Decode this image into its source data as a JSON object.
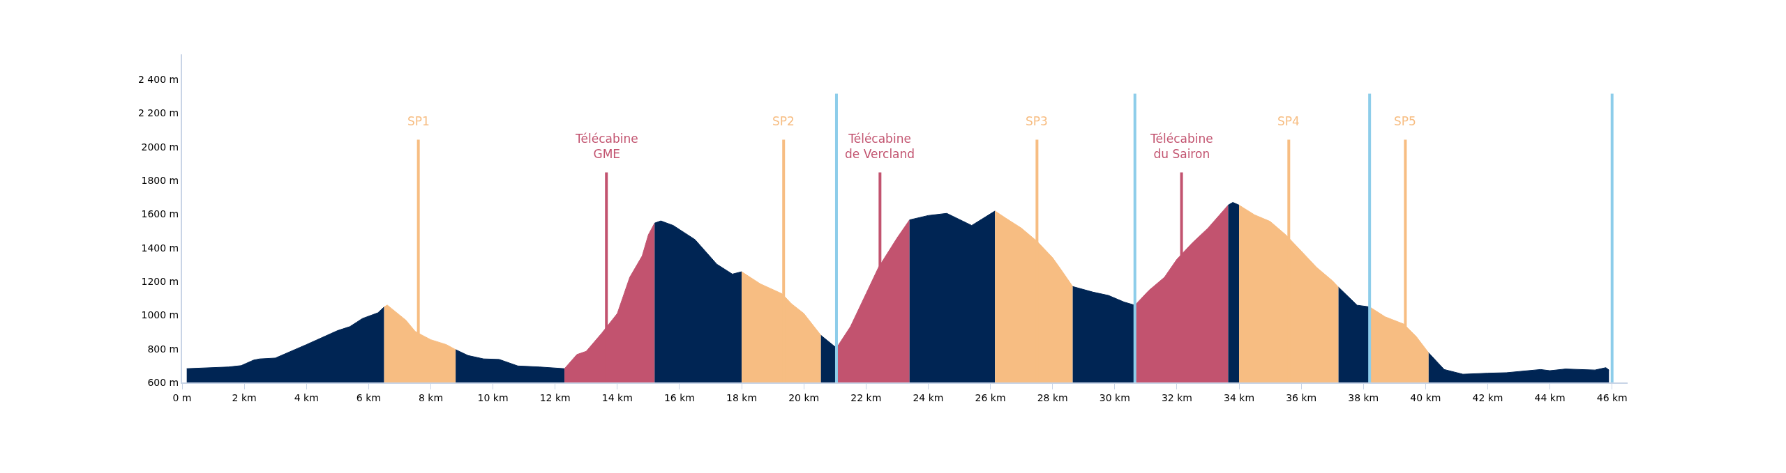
{
  "chart_data": {
    "type": "area",
    "xlim": [
      0,
      46.5
    ],
    "ylim": [
      600,
      2550
    ],
    "xticks": [
      {
        "value": 0,
        "label": "0 m"
      },
      {
        "value": 2,
        "label": "2 km"
      },
      {
        "value": 4,
        "label": "4 km"
      },
      {
        "value": 6,
        "label": "6 km"
      },
      {
        "value": 8,
        "label": "8 km"
      },
      {
        "value": 10,
        "label": "10 km"
      },
      {
        "value": 12,
        "label": "12 km"
      },
      {
        "value": 14,
        "label": "14 km"
      },
      {
        "value": 16,
        "label": "16 km"
      },
      {
        "value": 18,
        "label": "18 km"
      },
      {
        "value": 20,
        "label": "20 km"
      },
      {
        "value": 22,
        "label": "22 km"
      },
      {
        "value": 24,
        "label": "24 km"
      },
      {
        "value": 26,
        "label": "26 km"
      },
      {
        "value": 28,
        "label": "28 km"
      },
      {
        "value": 30,
        "label": "30 km"
      },
      {
        "value": 32,
        "label": "32 km"
      },
      {
        "value": 34,
        "label": "34 km"
      },
      {
        "value": 36,
        "label": "36 km"
      },
      {
        "value": 38,
        "label": "38 km"
      },
      {
        "value": 40,
        "label": "40 km"
      },
      {
        "value": 42,
        "label": "42 km"
      },
      {
        "value": 44,
        "label": "44 km"
      },
      {
        "value": 46,
        "label": "46 km"
      }
    ],
    "yticks": [
      {
        "value": 600,
        "label": "600 m"
      },
      {
        "value": 800,
        "label": "800 m"
      },
      {
        "value": 1000,
        "label": "1000 m"
      },
      {
        "value": 1200,
        "label": "1200 m"
      },
      {
        "value": 1400,
        "label": "1400 m"
      },
      {
        "value": 1600,
        "label": "1600 m"
      },
      {
        "value": 1800,
        "label": "1800 m"
      },
      {
        "value": 2000,
        "label": "2000 m"
      },
      {
        "value": 2200,
        "label": "2 200 m"
      },
      {
        "value": 2400,
        "label": "2 400 m"
      }
    ],
    "series": [
      {
        "color": "#002554",
        "x": [
          0.15,
          1.5,
          1.9,
          2.3,
          2.5,
          3.0,
          4,
          5,
          5.4,
          5.8,
          6.3,
          6.5
        ],
        "values": [
          682,
          692,
          700,
          733,
          740,
          745,
          825,
          908,
          932,
          980,
          1014,
          1049
        ]
      },
      {
        "color": "#f7bd82",
        "x": [
          6.5,
          6.6,
          7,
          7.2,
          7.5,
          7.7,
          8,
          8.5,
          8.8
        ],
        "values": [
          1049,
          1060,
          1000,
          970,
          903,
          883,
          854,
          825,
          795
        ]
      },
      {
        "color": "#002554",
        "x": [
          8.8,
          9.2,
          9.7,
          10.2,
          10.8,
          11.5,
          12.3
        ],
        "values": [
          795,
          760,
          740,
          737,
          698,
          692,
          682
        ]
      },
      {
        "color": "#c2536f",
        "x": [
          12.3,
          12.7,
          13.0,
          13.5,
          14,
          14.4,
          14.8,
          15.0,
          15.2
        ],
        "values": [
          682,
          766,
          785,
          893,
          1010,
          1225,
          1352,
          1478,
          1547
        ]
      },
      {
        "color": "#002554",
        "x": [
          15.2,
          15.4,
          15.8,
          16.5,
          17.2,
          17.7,
          18.0
        ],
        "values": [
          1547,
          1560,
          1533,
          1449,
          1303,
          1244,
          1258
        ]
      },
      {
        "color": "#f7bd82",
        "x": [
          18.0,
          18.6,
          19.3,
          19.6,
          20.0,
          20.55
        ],
        "values": [
          1258,
          1186,
          1127,
          1068,
          1010,
          880
        ]
      },
      {
        "color": "#002554",
        "x": [
          20.55,
          21.05
        ],
        "values": [
          880,
          805
        ]
      },
      {
        "color": "#c2536f",
        "x": [
          21.05,
          21.5,
          22.0,
          22.4,
          23.0,
          23.4
        ],
        "values": [
          805,
          932,
          1127,
          1283,
          1459,
          1566
        ]
      },
      {
        "color": "#002554",
        "x": [
          23.4,
          24,
          24.6,
          25.4,
          26.15
        ],
        "values": [
          1566,
          1592,
          1605,
          1533,
          1619
        ]
      },
      {
        "color": "#f7bd82",
        "x": [
          26.15,
          26.5,
          27.0,
          27.5,
          28,
          28.3,
          28.65
        ],
        "values": [
          1619,
          1576,
          1517,
          1439,
          1342,
          1264,
          1170
        ]
      },
      {
        "color": "#002554",
        "x": [
          28.65,
          29.3,
          29.8,
          30.3,
          30.65
        ],
        "values": [
          1170,
          1137,
          1117,
          1078,
          1059
        ]
      },
      {
        "color": "#c2536f",
        "x": [
          30.65,
          31.1,
          31.6,
          32,
          32.5,
          33.0,
          33.65
        ],
        "values": [
          1059,
          1147,
          1225,
          1332,
          1430,
          1517,
          1654
        ]
      },
      {
        "color": "#002554",
        "x": [
          33.65,
          33.8,
          34.0
        ],
        "values": [
          1654,
          1670,
          1654
        ]
      },
      {
        "color": "#f7bd82",
        "x": [
          34.0,
          34.5,
          35,
          35.5,
          36,
          36.5,
          37.0,
          37.2
        ],
        "values": [
          1654,
          1596,
          1557,
          1478,
          1381,
          1283,
          1205,
          1166
        ]
      },
      {
        "color": "#002554",
        "x": [
          37.2,
          37.8,
          38.2
        ],
        "values": [
          1166,
          1059,
          1049
        ]
      },
      {
        "color": "#f7bd82",
        "x": [
          38.2,
          38.7,
          39.3,
          39.7,
          40.1
        ],
        "values": [
          1049,
          990,
          947,
          873,
          776
        ]
      },
      {
        "color": "#002554",
        "x": [
          40.1,
          40.6,
          41.2,
          42,
          42.6,
          43.7,
          44.0,
          44.5,
          45.45,
          45.8,
          45.9
        ],
        "values": [
          776,
          677,
          649,
          655,
          658,
          677,
          670,
          680,
          674,
          688,
          674
        ]
      }
    ],
    "ref_lines": [
      {
        "axis": "x",
        "value": 7.6,
        "label": "SP1",
        "color": "#f7bd82"
      },
      {
        "axis": "x",
        "value": 13.65,
        "label": "Télécabine\nGME",
        "color": "#c2536f"
      },
      {
        "axis": "x",
        "value": 19.35,
        "label": "SP2",
        "color": "#f7bd82"
      },
      {
        "axis": "x",
        "value": 21.05,
        "color": "#8dcdea"
      },
      {
        "axis": "x",
        "value": 22.45,
        "label": "Télécabine\nde Vercland",
        "color": "#c2536f"
      },
      {
        "axis": "x",
        "value": 27.5,
        "label": "SP3",
        "color": "#f7bd82"
      },
      {
        "axis": "x",
        "value": 30.65,
        "color": "#8dcdea"
      },
      {
        "axis": "x",
        "value": 32.15,
        "label": "Télécabine\ndu Sairon",
        "color": "#c2536f"
      },
      {
        "axis": "x",
        "value": 35.6,
        "label": "SP4",
        "color": "#f7bd82"
      },
      {
        "axis": "x",
        "value": 38.2,
        "color": "#8dcdea"
      },
      {
        "axis": "x",
        "value": 39.35,
        "label": "SP5",
        "color": "#f7bd82"
      },
      {
        "axis": "x",
        "value": 46,
        "color": "#8dcdea"
      }
    ]
  }
}
